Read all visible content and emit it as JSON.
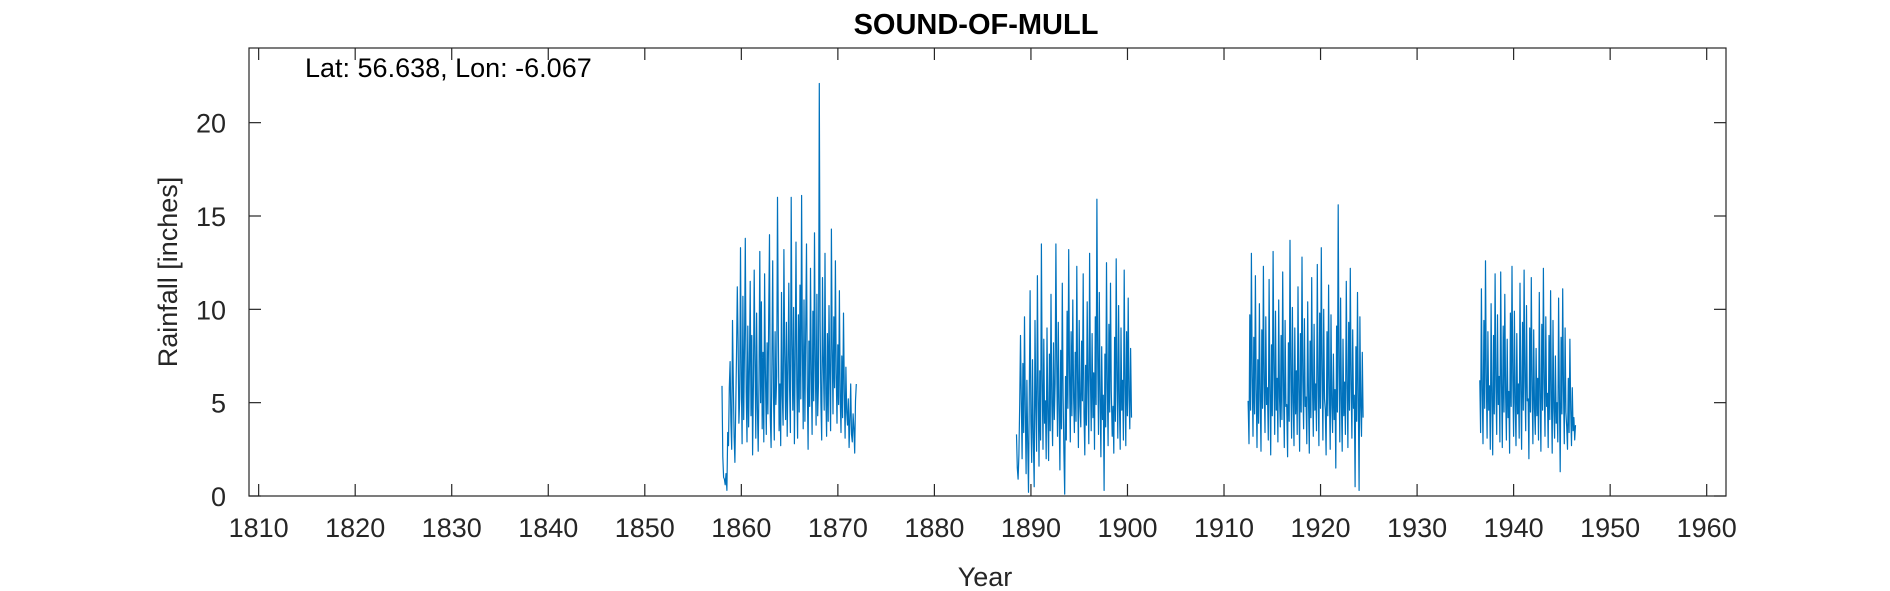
{
  "chart_data": {
    "type": "line",
    "title": "SOUND-OF-MULL",
    "xlabel": "Year",
    "ylabel": "Rainfall [inches]",
    "annotation": "Lat: 56.638, Lon: -6.067",
    "xlim": [
      1809,
      1962
    ],
    "ylim": [
      0,
      24
    ],
    "xticks": [
      1810,
      1820,
      1830,
      1840,
      1850,
      1860,
      1870,
      1880,
      1890,
      1900,
      1910,
      1920,
      1930,
      1940,
      1950,
      1960
    ],
    "yticks": [
      0,
      5,
      10,
      15,
      20
    ],
    "grid": false,
    "line_color": "#0072bd",
    "series": [
      {
        "segments": [
          {
            "start_year": 1858.0,
            "step": 0.0833,
            "values": [
              5.9,
              2.1,
              1.0,
              0.9,
              0.6,
              1.2,
              0.3,
              3.4,
              2.7,
              5.8,
              7.2,
              4.0,
              2.5,
              9.4,
              6.1,
              3.2,
              1.8,
              4.6,
              7.5,
              11.2,
              8.3,
              3.9,
              5.2,
              13.3,
              6.4,
              2.8,
              10.7,
              4.1,
              7.9,
              13.8,
              5.6,
              2.9,
              9.1,
              3.7,
              6.8,
              11.5,
              4.3,
              8.6,
              2.2,
              5.9,
              12.1,
              7.3,
              3.1,
              9.8,
              4.7,
              2.4,
              6.2,
              13.1,
              5.0,
              10.4,
              3.6,
              7.7,
              2.9,
              11.9,
              6.6,
              3.3,
              8.2,
              4.4,
              9.6,
              14.0,
              4.2,
              2.6,
              7.1,
              12.6,
              5.3,
              3.0,
              8.8,
              4.9,
              6.4,
              16.0,
              9.0,
              3.5,
              6.0,
              2.7,
              10.9,
              5.4,
              3.8,
              13.2,
              7.6,
              4.1,
              9.3,
              3.2,
              6.8,
              11.4,
              5.7,
              3.4,
              16.0,
              8.1,
              4.6,
              10.1,
              2.8,
              7.4,
              13.6,
              6.0,
              3.1,
              9.7,
              4.5,
              11.3,
              5.2,
              16.1,
              7.8,
              3.6,
              10.5,
              4.0,
              8.9,
              13.5,
              5.9,
              2.5,
              8.3,
              4.8,
              12.2,
              6.5,
              3.3,
              9.9,
              5.1,
              14.1,
              7.0,
              3.8,
              10.8,
              4.3,
              6.1,
              22.1,
              9.4,
              5.0,
              3.0,
              11.7,
              7.2,
              4.6,
              13.0,
              5.5,
              3.2,
              8.7,
              4.0,
              10.2,
              6.3,
              3.5,
              14.3,
              7.9,
              4.4,
              9.6,
              5.8,
              12.6,
              6.6,
              3.9,
              8.1,
              4.9,
              11.0,
              5.3,
              3.4,
              7.5,
              4.2,
              9.8,
              5.6,
              3.1,
              6.9,
              4.5,
              3.8,
              5.2,
              2.6,
              4.1,
              6.0,
              3.3,
              2.9,
              4.4,
              3.6,
              2.3,
              5.1,
              6.0
            ]
          },
          {
            "start_year": 1888.5,
            "step": 0.0833,
            "values": [
              3.3,
              1.5,
              0.9,
              2.2,
              4.9,
              8.6,
              5.2,
              2.0,
              7.1,
              3.4,
              9.6,
              4.6,
              1.2,
              6.2,
              2.8,
              0.2,
              5.5,
              11.0,
              4.0,
              1.8,
              7.3,
              3.1,
              0.5,
              9.4,
              4.8,
              2.4,
              11.8,
              5.6,
              1.6,
              6.7,
              3.0,
              13.5,
              6.2,
              2.5,
              8.4,
              3.9,
              5.1,
              2.0,
              9.0,
              4.4,
              1.9,
              7.6,
              3.5,
              10.8,
              5.0,
              2.7,
              8.2,
              4.1,
              6.0,
              13.5,
              7.2,
              3.2,
              9.3,
              4.6,
              1.4,
              7.8,
              3.6,
              11.4,
              5.4,
              2.3,
              0.1,
              6.4,
              3.0,
              9.9,
              4.7,
              13.2,
              6.6,
              2.9,
              8.8,
              4.3,
              10.5,
              5.3,
              3.4,
              7.7,
              4.0,
              12.3,
              6.1,
              2.6,
              9.4,
              4.8,
              3.7,
              8.3,
              5.1,
              11.9,
              4.4,
              2.2,
              7.0,
              3.8,
              10.4,
              5.7,
              2.8,
              13.0,
              6.5,
              3.5,
              8.7,
              4.2,
              6.6,
              2.5,
              9.6,
              4.9,
              15.9,
              7.4,
              3.3,
              10.9,
              5.2,
              2.1,
              8.0,
              4.1,
              5.4,
              0.3,
              7.6,
              3.7,
              12.5,
              6.0,
              2.7,
              9.2,
              4.5,
              11.4,
              5.6,
              3.2,
              4.8,
              2.3,
              8.5,
              4.0,
              12.7,
              6.3,
              3.1,
              10.2,
              5.0,
              2.5,
              9.0,
              4.6,
              6.2,
              3.0,
              12.1,
              5.9,
              2.7,
              8.8,
              4.3,
              10.6,
              5.4,
              3.6,
              7.9,
              4.2
            ]
          },
          {
            "start_year": 1912.5,
            "step": 0.0833,
            "values": [
              5.1,
              2.8,
              9.7,
              4.6,
              13.0,
              6.4,
              3.2,
              8.5,
              4.4,
              11.8,
              5.7,
              2.6,
              7.3,
              3.9,
              10.3,
              5.2,
              2.4,
              8.9,
              4.7,
              12.3,
              6.0,
              3.4,
              9.6,
              4.9,
              5.8,
              3.0,
              11.6,
              5.5,
              2.2,
              8.1,
              4.3,
              13.1,
              6.8,
              3.3,
              9.9,
              4.6,
              6.3,
              2.9,
              10.5,
              5.3,
              3.7,
              8.6,
              4.1,
              12.0,
              5.9,
              2.6,
              9.4,
              4.8,
              4.9,
              2.1,
              8.2,
              4.0,
              13.7,
              6.5,
              3.1,
              10.1,
              5.0,
              2.7,
              9.0,
              4.4,
              6.7,
              3.3,
              11.2,
              5.6,
              2.4,
              8.7,
              4.5,
              12.8,
              6.2,
              3.6,
              9.5,
              4.8,
              5.3,
              2.8,
              10.4,
              5.1,
              2.3,
              8.3,
              4.2,
              11.7,
              5.8,
              3.2,
              9.2,
              4.6,
              6.0,
              3.5,
              12.4,
              6.1,
              2.7,
              9.8,
              4.7,
              13.3,
              6.6,
              3.0,
              10.0,
              5.2,
              4.6,
              2.2,
              8.8,
              4.3,
              11.3,
              5.5,
              2.5,
              9.7,
              4.9,
              3.4,
              7.6,
              4.1,
              5.7,
              1.5,
              9.1,
              4.5,
              15.6,
              7.0,
              2.9,
              10.6,
              5.1,
              2.4,
              8.4,
              4.3,
              6.1,
              3.3,
              11.5,
              5.8,
              2.6,
              9.3,
              4.6,
              12.2,
              6.0,
              3.1,
              8.9,
              4.7,
              5.4,
              0.5,
              8.0,
              4.0,
              10.9,
              5.3,
              0.3,
              9.6,
              4.8,
              3.2,
              7.7,
              4.2
            ]
          },
          {
            "start_year": 1936.5,
            "step": 0.0833,
            "values": [
              6.2,
              3.4,
              11.1,
              5.7,
              2.8,
              9.4,
              4.7,
              12.6,
              6.3,
              3.1,
              8.8,
              4.6,
              5.9,
              2.5,
              10.3,
              5.2,
              2.2,
              8.6,
              4.4,
              11.9,
              5.9,
              3.3,
              9.7,
              4.9,
              6.4,
              2.9,
              12.0,
              6.0,
              2.6,
              9.1,
              4.5,
              10.8,
              5.5,
              3.0,
              8.4,
              4.2,
              5.6,
              2.3,
              9.8,
              4.8,
              12.3,
              6.2,
              3.2,
              9.9,
              5.0,
              2.7,
              8.7,
              4.4,
              6.0,
              3.1,
              11.4,
              5.6,
              2.5,
              9.3,
              4.6,
              12.1,
              6.1,
              3.5,
              10.2,
              5.1,
              5.2,
              2.0,
              9.0,
              4.5,
              11.7,
              5.7,
              2.8,
              8.9,
              4.7,
              3.3,
              7.9,
              4.3,
              6.3,
              3.0,
              10.9,
              5.4,
              2.4,
              9.2,
              4.6,
              12.2,
              6.0,
              3.2,
              9.6,
              4.8,
              5.5,
              2.6,
              8.6,
              4.1,
              11.0,
              5.3,
              2.3,
              9.4,
              4.7,
              3.1,
              7.5,
              3.9,
              5.0,
              2.9,
              10.6,
              5.2,
              1.3,
              8.5,
              4.4,
              11.1,
              5.6,
              2.8,
              9.0,
              4.5,
              3.7,
              2.5,
              6.3,
              3.4,
              8.4,
              4.6,
              2.7,
              5.8,
              3.5,
              4.2,
              3.0,
              3.8
            ]
          }
        ]
      }
    ]
  }
}
